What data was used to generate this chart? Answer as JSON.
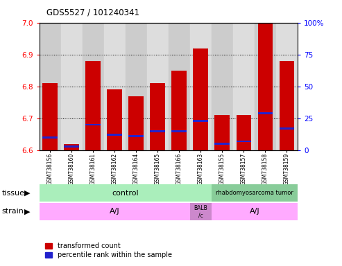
{
  "title": "GDS5527 / 101240341",
  "samples": [
    "GSM738156",
    "GSM738160",
    "GSM738161",
    "GSM738162",
    "GSM738164",
    "GSM738165",
    "GSM738166",
    "GSM738163",
    "GSM738155",
    "GSM738157",
    "GSM738158",
    "GSM738159"
  ],
  "transformed_count": [
    6.81,
    6.62,
    6.88,
    6.79,
    6.77,
    6.81,
    6.85,
    6.92,
    6.71,
    6.71,
    7.0,
    6.88
  ],
  "percentile_rank": [
    10,
    3,
    20,
    12,
    11,
    15,
    15,
    23,
    5,
    7,
    29,
    17
  ],
  "ymin": 6.6,
  "ymax": 7.0,
  "yticks": [
    6.6,
    6.7,
    6.8,
    6.9,
    7.0
  ],
  "y2ticks": [
    0,
    25,
    50,
    75,
    100
  ],
  "bar_color": "#cc0000",
  "blue_color": "#2222cc",
  "tissue_control_label": "control",
  "tissue_tumor_label": "rhabdomyosarcoma tumor",
  "tissue_control_color": "#aaeebb",
  "tissue_tumor_color": "#88cc99",
  "strain_AJ1_label": "A/J",
  "strain_BALB_label": "BALB\n/c",
  "strain_AJ2_label": "A/J",
  "strain_color": "#ffaaff",
  "strain_BALB_color": "#cc88cc",
  "legend_red": "transformed count",
  "legend_blue": "percentile rank within the sample",
  "tissue_label": "tissue",
  "strain_label": "strain",
  "bg_colors": [
    "#cccccc",
    "#dddddd"
  ]
}
